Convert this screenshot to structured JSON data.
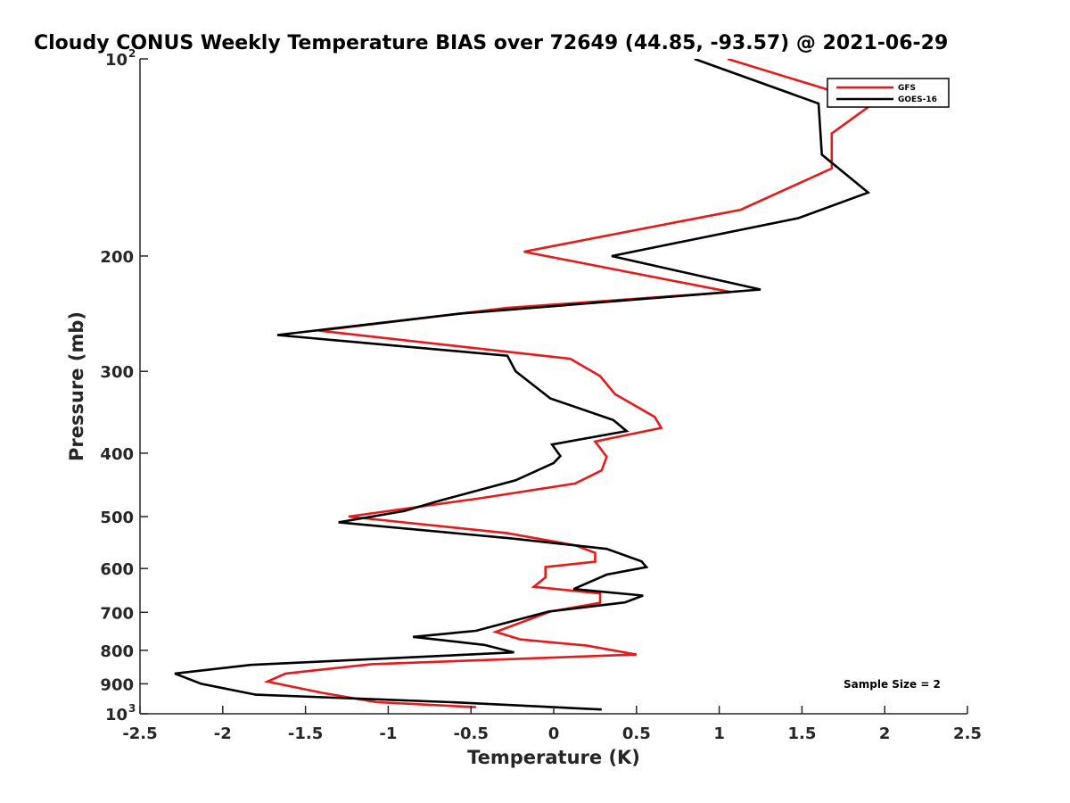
{
  "chart_data": {
    "type": "line",
    "title": "Cloudy CONUS Weekly Temperature BIAS over 72649 (44.85, -93.57) @ 2021-06-29",
    "xlabel": "Temperature (K)",
    "ylabel": "Pressure (mb)",
    "xlim": [
      -2.5,
      2.5
    ],
    "ylim": [
      100,
      1000
    ],
    "y_scale": "log",
    "y_reversed": true,
    "grid": false,
    "legend_position": "top-right",
    "x_ticks": [
      "-2.5",
      "-2",
      "-1.5",
      "-1",
      "-0.5",
      "0",
      "0.5",
      "1",
      "1.5",
      "2",
      "2.5"
    ],
    "y_ticks": [
      {
        "value": 100,
        "base": "10",
        "exp": "2"
      },
      {
        "value": 200,
        "base": "200",
        "exp": ""
      },
      {
        "value": 300,
        "base": "300",
        "exp": ""
      },
      {
        "value": 400,
        "base": "400",
        "exp": ""
      },
      {
        "value": 500,
        "base": "500",
        "exp": ""
      },
      {
        "value": 600,
        "base": "600",
        "exp": ""
      },
      {
        "value": 700,
        "base": "700",
        "exp": ""
      },
      {
        "value": 800,
        "base": "800",
        "exp": ""
      },
      {
        "value": 900,
        "base": "900",
        "exp": ""
      },
      {
        "value": 1000,
        "base": "10",
        "exp": "3"
      }
    ],
    "annotation": "Sample Size = 2",
    "series": [
      {
        "name": "GFS",
        "color": "#e41a1c",
        "points": [
          [
            1.05,
            100
          ],
          [
            1.93,
            117
          ],
          [
            1.68,
            130
          ],
          [
            1.68,
            147
          ],
          [
            1.13,
            170
          ],
          [
            -0.18,
            197
          ],
          [
            1.07,
            227
          ],
          [
            -0.28,
            240
          ],
          [
            -1.42,
            260
          ],
          [
            0.1,
            287
          ],
          [
            0.28,
            305
          ],
          [
            0.37,
            325
          ],
          [
            0.61,
            352
          ],
          [
            0.65,
            366
          ],
          [
            0.25,
            384
          ],
          [
            0.32,
            405
          ],
          [
            0.29,
            425
          ],
          [
            0.13,
            445
          ],
          [
            -0.45,
            469
          ],
          [
            -1.24,
            500
          ],
          [
            -0.28,
            530
          ],
          [
            0.13,
            553
          ],
          [
            0.25,
            568
          ],
          [
            0.25,
            586
          ],
          [
            -0.05,
            597
          ],
          [
            -0.05,
            619
          ],
          [
            -0.12,
            640
          ],
          [
            0.28,
            655
          ],
          [
            0.28,
            677
          ],
          [
            -0.02,
            698
          ],
          [
            -0.35,
            750
          ],
          [
            -0.2,
            770
          ],
          [
            0.2,
            787
          ],
          [
            0.5,
            812
          ],
          [
            -1.1,
            840
          ],
          [
            -1.62,
            868
          ],
          [
            -1.73,
            893
          ],
          [
            -1.4,
            929
          ],
          [
            -1.07,
            960
          ],
          [
            -0.47,
            977
          ]
        ]
      },
      {
        "name": "GOES-16",
        "color": "#000000",
        "points": [
          [
            0.85,
            100
          ],
          [
            1.6,
            117
          ],
          [
            1.62,
            140
          ],
          [
            1.9,
            160
          ],
          [
            1.48,
            175
          ],
          [
            0.35,
            200
          ],
          [
            1.25,
            225
          ],
          [
            -0.57,
            245
          ],
          [
            -1.67,
            264
          ],
          [
            -0.28,
            284
          ],
          [
            -0.23,
            300
          ],
          [
            -0.02,
            330
          ],
          [
            0.36,
            356
          ],
          [
            0.44,
            370
          ],
          [
            -0.01,
            388
          ],
          [
            0.04,
            404
          ],
          [
            0.0,
            414
          ],
          [
            -0.23,
            440
          ],
          [
            -0.72,
            475
          ],
          [
            -0.9,
            490
          ],
          [
            -1.3,
            510
          ],
          [
            -0.25,
            540
          ],
          [
            0.32,
            560
          ],
          [
            0.53,
            585
          ],
          [
            0.56,
            597
          ],
          [
            0.32,
            613
          ],
          [
            0.12,
            645
          ],
          [
            0.54,
            660
          ],
          [
            0.43,
            676
          ],
          [
            -0.03,
            698
          ],
          [
            -0.47,
            747
          ],
          [
            -0.85,
            763
          ],
          [
            -0.42,
            785
          ],
          [
            -0.24,
            806
          ],
          [
            -1.83,
            842
          ],
          [
            -2.29,
            868
          ],
          [
            -2.13,
            900
          ],
          [
            -1.8,
            935
          ],
          [
            -0.62,
            960
          ],
          [
            0.29,
            985
          ]
        ]
      }
    ]
  }
}
